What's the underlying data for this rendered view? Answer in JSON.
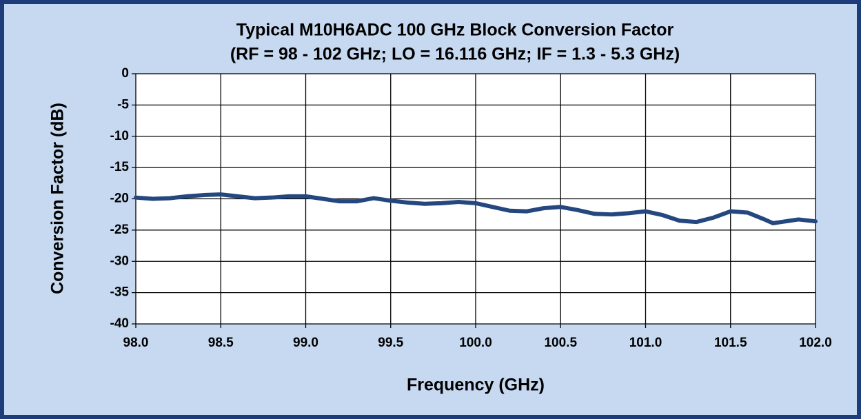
{
  "chart_data": {
    "type": "line",
    "title": "Typical M10H6ADC 100 GHz Block Conversion Factor",
    "subtitle": "(RF  = 98 - 102 GHz; LO = 16.116 GHz; IF = 1.3 - 5.3 GHz)",
    "x_label": "Frequency (GHz)",
    "y_label": "Conversion Factor (dB)",
    "x": [
      98.0,
      98.1,
      98.2,
      98.3,
      98.4,
      98.5,
      98.6,
      98.7,
      98.8,
      98.9,
      99.0,
      99.1,
      99.2,
      99.3,
      99.4,
      99.5,
      99.6,
      99.7,
      99.8,
      99.9,
      100.0,
      100.1,
      100.2,
      100.3,
      100.4,
      100.5,
      100.6,
      100.7,
      100.8,
      100.9,
      101.0,
      101.1,
      101.2,
      101.3,
      101.4,
      101.5,
      101.6,
      101.7,
      101.75,
      101.8,
      101.9,
      102.0
    ],
    "series": [
      {
        "color": "#25477f",
        "values": [
          -19.8,
          -20.0,
          -19.9,
          -19.6,
          -19.4,
          -19.3,
          -19.6,
          -19.9,
          -19.8,
          -19.6,
          -19.6,
          -20.0,
          -20.4,
          -20.4,
          -19.9,
          -20.3,
          -20.6,
          -20.8,
          -20.7,
          -20.5,
          -20.7,
          -21.3,
          -21.9,
          -22.0,
          -21.5,
          -21.3,
          -21.8,
          -22.4,
          -22.5,
          -22.3,
          -22.0,
          -22.6,
          -23.5,
          -23.7,
          -23.0,
          -22.0,
          -22.2,
          -23.3,
          -23.9,
          -23.7,
          -23.3,
          -23.6
        ]
      }
    ],
    "xlim": [
      98,
      102
    ],
    "xticks": [
      {
        "value": 98,
        "label": "98.0"
      },
      98.5,
      {
        "value": 99,
        "label": "99.0"
      },
      99.5,
      {
        "value": 100,
        "label": "100.0"
      },
      100.5,
      {
        "value": 101,
        "label": "101.0"
      },
      101.5,
      {
        "value": 102,
        "label": "102.0"
      }
    ],
    "ylim": [
      -40,
      0
    ],
    "yticks": [
      0,
      -5,
      -10,
      -15,
      -20,
      -25,
      -30,
      -35,
      -40
    ],
    "grid": true
  }
}
